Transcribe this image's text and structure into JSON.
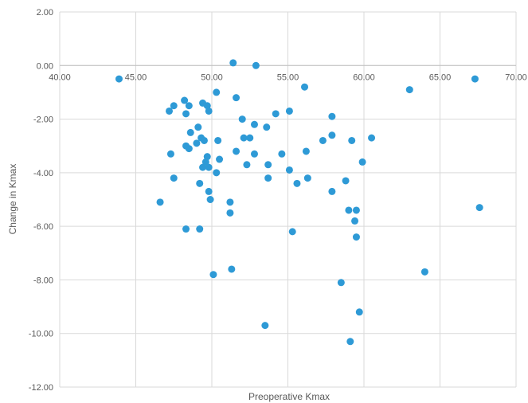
{
  "chart_data": {
    "type": "scatter",
    "title": "",
    "xlabel": "Preoperative Kmax",
    "ylabel": "Change in Kmax",
    "xlim": [
      40,
      70
    ],
    "ylim": [
      -12,
      2
    ],
    "x_ticks": [
      "40.00",
      "45.00",
      "50.00",
      "55.00",
      "60.00",
      "65.00",
      "70.00"
    ],
    "y_ticks": [
      "2.00",
      "0.00",
      "-2.00",
      "-4.00",
      "-6.00",
      "-8.00",
      "-10.00",
      "-12.00"
    ],
    "grid": true,
    "legend": "none",
    "marker_color": "#2e9ad6",
    "series": [
      {
        "points": [
          [
            43.9,
            -0.5
          ],
          [
            51.4,
            0.1
          ],
          [
            52.9,
            0.0
          ],
          [
            56.1,
            -0.8
          ],
          [
            63.0,
            -0.9
          ],
          [
            67.3,
            -0.5
          ],
          [
            47.2,
            -1.7
          ],
          [
            47.5,
            -1.5
          ],
          [
            48.2,
            -1.3
          ],
          [
            48.5,
            -1.5
          ],
          [
            48.3,
            -1.8
          ],
          [
            49.4,
            -1.4
          ],
          [
            49.7,
            -1.5
          ],
          [
            49.8,
            -1.7
          ],
          [
            50.3,
            -1.0
          ],
          [
            51.6,
            -1.2
          ],
          [
            52.0,
            -2.0
          ],
          [
            52.8,
            -2.2
          ],
          [
            53.6,
            -2.3
          ],
          [
            54.2,
            -1.8
          ],
          [
            55.1,
            -1.7
          ],
          [
            57.9,
            -1.9
          ],
          [
            49.1,
            -2.3
          ],
          [
            48.6,
            -2.5
          ],
          [
            49.0,
            -2.9
          ],
          [
            49.3,
            -2.7
          ],
          [
            49.5,
            -2.8
          ],
          [
            50.4,
            -2.8
          ],
          [
            52.1,
            -2.7
          ],
          [
            52.5,
            -2.7
          ],
          [
            57.3,
            -2.8
          ],
          [
            57.9,
            -2.6
          ],
          [
            59.2,
            -2.8
          ],
          [
            60.5,
            -2.7
          ],
          [
            47.3,
            -3.3
          ],
          [
            48.3,
            -3.0
          ],
          [
            48.5,
            -3.1
          ],
          [
            49.7,
            -3.4
          ],
          [
            49.6,
            -3.6
          ],
          [
            49.8,
            -3.8
          ],
          [
            49.4,
            -3.8
          ],
          [
            50.3,
            -4.0
          ],
          [
            50.5,
            -3.5
          ],
          [
            51.6,
            -3.2
          ],
          [
            52.3,
            -3.7
          ],
          [
            52.8,
            -3.3
          ],
          [
            53.7,
            -3.7
          ],
          [
            54.6,
            -3.3
          ],
          [
            55.1,
            -3.9
          ],
          [
            56.2,
            -3.2
          ],
          [
            59.9,
            -3.6
          ],
          [
            47.5,
            -4.2
          ],
          [
            49.2,
            -4.4
          ],
          [
            49.8,
            -4.7
          ],
          [
            49.9,
            -5.0
          ],
          [
            53.7,
            -4.2
          ],
          [
            55.6,
            -4.4
          ],
          [
            56.3,
            -4.2
          ],
          [
            58.8,
            -4.3
          ],
          [
            57.9,
            -4.7
          ],
          [
            46.6,
            -5.1
          ],
          [
            51.2,
            -5.1
          ],
          [
            51.2,
            -5.5
          ],
          [
            59.0,
            -5.4
          ],
          [
            59.5,
            -5.4
          ],
          [
            59.4,
            -5.8
          ],
          [
            67.6,
            -5.3
          ],
          [
            48.3,
            -6.1
          ],
          [
            49.2,
            -6.1
          ],
          [
            55.3,
            -6.2
          ],
          [
            59.5,
            -6.4
          ],
          [
            51.3,
            -7.6
          ],
          [
            50.1,
            -7.8
          ],
          [
            58.5,
            -8.1
          ],
          [
            64.0,
            -7.7
          ],
          [
            59.7,
            -9.2
          ],
          [
            53.5,
            -9.7
          ],
          [
            59.1,
            -10.3
          ]
        ]
      }
    ]
  }
}
